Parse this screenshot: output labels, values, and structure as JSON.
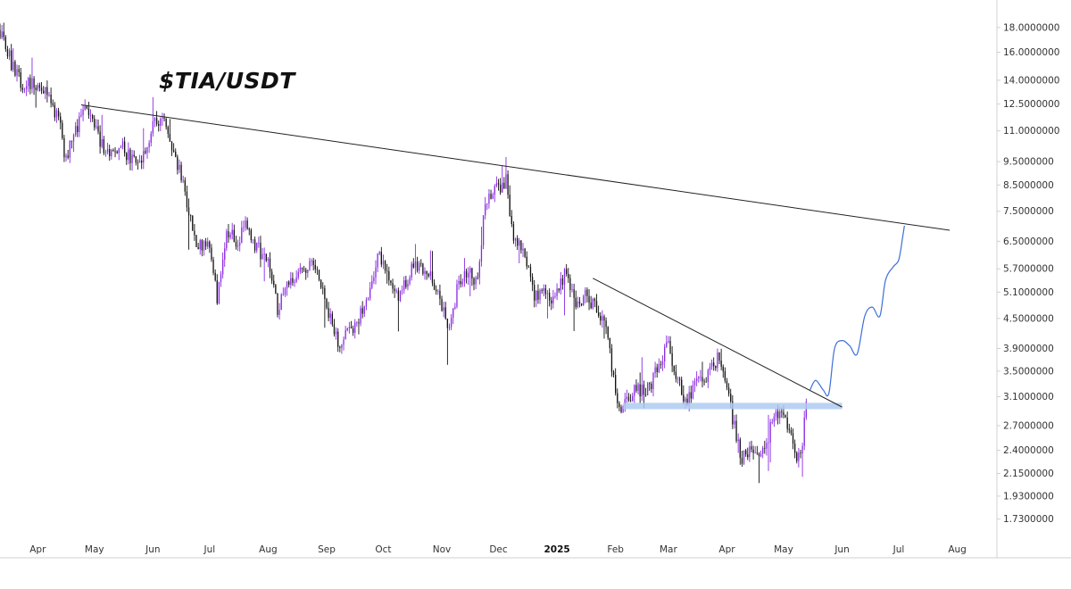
{
  "chart_title": "$TIA/USDT",
  "colors": {
    "up_candle": "#8a2be2",
    "down_candle": "#111111",
    "trendline": "#222222",
    "support_zone": "#aecbf2",
    "projection": "#3b6fd6",
    "axis_text": "#333333",
    "axis_line": "#d0d0d0"
  },
  "chart_data": {
    "type": "candlestick",
    "title": "$TIA/USDT",
    "y_scale": "log",
    "ylim": [
      1.6,
      19.5
    ],
    "y_ticks": [
      "18.0000000",
      "16.0000000",
      "14.0000000",
      "12.5000000",
      "11.0000000",
      "9.5000000",
      "8.5000000",
      "7.5000000",
      "6.5000000",
      "5.7000000",
      "5.1000000",
      "4.5000000",
      "3.9000000",
      "3.5000000",
      "3.1000000",
      "2.7000000",
      "2.4000000",
      "2.1500000",
      "1.9300000",
      "1.7300000"
    ],
    "x_ticks": [
      {
        "label": "Apr",
        "date": "2024-04-01"
      },
      {
        "label": "May",
        "date": "2024-05-01"
      },
      {
        "label": "Jun",
        "date": "2024-06-01"
      },
      {
        "label": "Jul",
        "date": "2024-07-01"
      },
      {
        "label": "Aug",
        "date": "2024-08-01"
      },
      {
        "label": "Sep",
        "date": "2024-09-01"
      },
      {
        "label": "Oct",
        "date": "2024-10-01"
      },
      {
        "label": "Nov",
        "date": "2024-11-01"
      },
      {
        "label": "Dec",
        "date": "2024-12-01"
      },
      {
        "label": "2025",
        "date": "2025-01-01",
        "bold": true
      },
      {
        "label": "Feb",
        "date": "2025-02-01"
      },
      {
        "label": "Mar",
        "date": "2025-03-01"
      },
      {
        "label": "Apr",
        "date": "2025-04-01"
      },
      {
        "label": "May",
        "date": "2025-05-01"
      },
      {
        "label": "Jun",
        "date": "2025-06-01"
      },
      {
        "label": "Jul",
        "date": "2025-07-01"
      },
      {
        "label": "Aug",
        "date": "2025-08-01"
      }
    ],
    "xlim": [
      "2024-03-12",
      "2025-08-22"
    ],
    "price_path": [
      [
        "2024-03-12",
        17.8
      ],
      [
        "2024-03-18",
        15.2
      ],
      [
        "2024-03-24",
        13.6
      ],
      [
        "2024-03-31",
        13.8
      ],
      [
        "2024-04-06",
        13.0
      ],
      [
        "2024-04-12",
        11.6
      ],
      [
        "2024-04-16",
        9.6
      ],
      [
        "2024-04-22",
        11.3
      ],
      [
        "2024-04-26",
        12.2
      ],
      [
        "2024-04-30",
        11.4
      ],
      [
        "2024-05-08",
        9.8
      ],
      [
        "2024-05-15",
        10.2
      ],
      [
        "2024-05-22",
        9.4
      ],
      [
        "2024-05-28",
        9.9
      ],
      [
        "2024-06-01",
        11.5
      ],
      [
        "2024-06-05",
        11.7
      ],
      [
        "2024-06-12",
        10.2
      ],
      [
        "2024-06-18",
        8.2
      ],
      [
        "2024-06-24",
        6.5
      ],
      [
        "2024-07-01",
        6.4
      ],
      [
        "2024-07-05",
        5.0
      ],
      [
        "2024-07-10",
        6.8
      ],
      [
        "2024-07-15",
        6.5
      ],
      [
        "2024-07-21",
        7.1
      ],
      [
        "2024-07-26",
        6.3
      ],
      [
        "2024-08-01",
        5.9
      ],
      [
        "2024-08-06",
        4.7
      ],
      [
        "2024-08-12",
        5.4
      ],
      [
        "2024-08-18",
        5.6
      ],
      [
        "2024-08-24",
        5.9
      ],
      [
        "2024-08-30",
        5.1
      ],
      [
        "2024-09-04",
        4.4
      ],
      [
        "2024-09-08",
        3.9
      ],
      [
        "2024-09-12",
        4.2
      ],
      [
        "2024-09-18",
        4.5
      ],
      [
        "2024-09-25",
        5.3
      ],
      [
        "2024-09-28",
        6.1
      ],
      [
        "2024-10-03",
        5.6
      ],
      [
        "2024-10-08",
        5.0
      ],
      [
        "2024-10-12",
        5.3
      ],
      [
        "2024-10-18",
        5.9
      ],
      [
        "2024-10-24",
        5.7
      ],
      [
        "2024-10-30",
        5.1
      ],
      [
        "2024-11-05",
        4.3
      ],
      [
        "2024-11-10",
        5.4
      ],
      [
        "2024-11-15",
        5.6
      ],
      [
        "2024-11-20",
        5.4
      ],
      [
        "2024-11-24",
        8.0
      ],
      [
        "2024-11-29",
        8.3
      ],
      [
        "2024-12-05",
        8.7
      ],
      [
        "2024-12-09",
        6.5
      ],
      [
        "2024-12-14",
        6.2
      ],
      [
        "2024-12-20",
        5.0
      ],
      [
        "2024-12-25",
        5.1
      ],
      [
        "2024-12-30",
        4.9
      ],
      [
        "2025-01-05",
        5.5
      ],
      [
        "2025-01-12",
        4.8
      ],
      [
        "2025-01-16",
        5.1
      ],
      [
        "2025-01-22",
        4.7
      ],
      [
        "2025-01-27",
        4.2
      ],
      [
        "2025-02-02",
        3.1
      ],
      [
        "2025-02-04",
        2.9
      ],
      [
        "2025-02-10",
        3.2
      ],
      [
        "2025-02-18",
        3.2
      ],
      [
        "2025-02-24",
        3.6
      ],
      [
        "2025-02-28",
        4.0
      ],
      [
        "2025-03-04",
        3.6
      ],
      [
        "2025-03-08",
        3.2
      ],
      [
        "2025-03-11",
        2.95
      ],
      [
        "2025-03-16",
        3.5
      ],
      [
        "2025-03-22",
        3.4
      ],
      [
        "2025-03-27",
        3.7
      ],
      [
        "2025-04-02",
        3.1
      ],
      [
        "2025-04-06",
        2.55
      ],
      [
        "2025-04-09",
        2.3
      ],
      [
        "2025-04-14",
        2.45
      ],
      [
        "2025-04-20",
        2.35
      ],
      [
        "2025-04-25",
        2.75
      ],
      [
        "2025-04-30",
        2.9
      ],
      [
        "2025-05-04",
        2.7
      ],
      [
        "2025-05-08",
        2.35
      ],
      [
        "2025-05-11",
        2.5
      ],
      [
        "2025-05-13",
        3.05
      ]
    ],
    "annotations": {
      "main_trendline": {
        "from": [
          "2024-04-24",
          12.45
        ],
        "to": [
          "2025-07-28",
          6.85
        ]
      },
      "short_trendline": {
        "from": [
          "2025-01-20",
          5.45
        ],
        "to": [
          "2025-06-01",
          2.95
        ]
      },
      "support_zone": {
        "from": "2025-02-05",
        "to": "2025-06-01",
        "ymin": 2.92,
        "ymax": 3.01
      },
      "projection": [
        [
          "2025-05-15",
          3.2
        ],
        [
          "2025-05-18",
          3.35
        ],
        [
          "2025-05-22",
          3.2
        ],
        [
          "2025-05-25",
          3.15
        ],
        [
          "2025-05-28",
          3.9
        ],
        [
          "2025-06-01",
          4.05
        ],
        [
          "2025-06-05",
          3.95
        ],
        [
          "2025-06-09",
          3.8
        ],
        [
          "2025-06-13",
          4.55
        ],
        [
          "2025-06-17",
          4.75
        ],
        [
          "2025-06-21",
          4.55
        ],
        [
          "2025-06-24",
          5.4
        ],
        [
          "2025-06-28",
          5.75
        ],
        [
          "2025-07-01",
          5.95
        ],
        [
          "2025-07-03",
          6.6
        ],
        [
          "2025-07-04",
          7.0
        ]
      ]
    }
  }
}
